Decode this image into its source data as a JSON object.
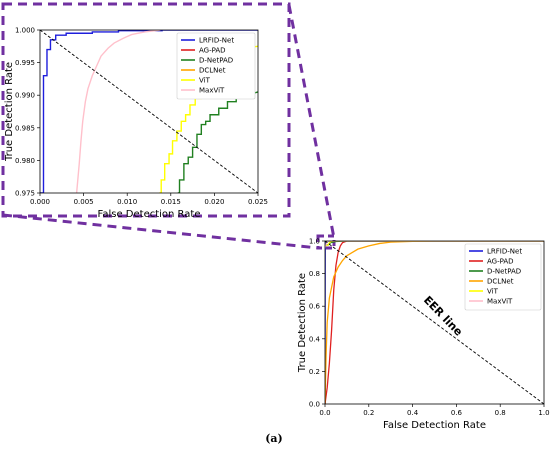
{
  "caption": "(a)",
  "zoom_box_color": "#7030a0",
  "chart_data": [
    {
      "id": "inset",
      "type": "line",
      "xlabel": "False Detection Rate",
      "ylabel": "True Detection Rate",
      "xlim": [
        0,
        0.025
      ],
      "ylim": [
        0.975,
        1.0
      ],
      "xticks": [
        "0.000",
        "0.005",
        "0.010",
        "0.015",
        "0.020",
        "0.025"
      ],
      "xtick_values": [
        0,
        0.005,
        0.01,
        0.015,
        0.02,
        0.025
      ],
      "yticks": [
        "0.975",
        "0.980",
        "0.985",
        "0.990",
        "0.995",
        "1.000"
      ],
      "ytick_values": [
        0.975,
        0.98,
        0.985,
        0.99,
        0.995,
        1.0
      ],
      "grid": false,
      "legend": "top-right",
      "series": [
        {
          "name": "LRFID-Net",
          "color": "#1f1fdc",
          "x": [
            0,
            0.0004,
            0.0004,
            0.0008,
            0.0008,
            0.0012,
            0.0012,
            0.0018,
            0.0018,
            0.003,
            0.003,
            0.006,
            0.006,
            0.009,
            0.009,
            0.014,
            0.014,
            0.025
          ],
          "y": [
            0.975,
            0.975,
            0.993,
            0.993,
            0.997,
            0.997,
            0.9985,
            0.9985,
            0.9992,
            0.9992,
            0.9995,
            0.9995,
            0.9997,
            0.9997,
            0.9999,
            0.9999,
            1.0,
            1.0
          ]
        },
        {
          "name": "AG-PAD",
          "color": "#e02020",
          "x": [],
          "y": []
        },
        {
          "name": "D-NetPAD",
          "color": "#208020",
          "x": [
            0.0158,
            0.016,
            0.016,
            0.0165,
            0.0165,
            0.017,
            0.017,
            0.0175,
            0.0175,
            0.018,
            0.018,
            0.0185,
            0.0185,
            0.019,
            0.019,
            0.0195,
            0.0195,
            0.0205,
            0.0205,
            0.0215,
            0.0215,
            0.0225,
            0.0225,
            0.025
          ],
          "y": [
            0.975,
            0.975,
            0.977,
            0.977,
            0.9795,
            0.9795,
            0.9805,
            0.9805,
            0.982,
            0.982,
            0.984,
            0.984,
            0.9855,
            0.9855,
            0.986,
            0.986,
            0.987,
            0.987,
            0.988,
            0.988,
            0.989,
            0.989,
            0.9895,
            0.9905
          ]
        },
        {
          "name": "DCLNet",
          "color": "#ffa500",
          "x": [],
          "y": []
        },
        {
          "name": "ViT",
          "color": "#ffff00",
          "x": [
            0.0137,
            0.0139,
            0.0139,
            0.0143,
            0.0143,
            0.0148,
            0.0148,
            0.0152,
            0.0152,
            0.0157,
            0.0157,
            0.0162,
            0.0162,
            0.0167,
            0.0167,
            0.0172,
            0.0172,
            0.0178,
            0.0178,
            0.0185,
            0.0185,
            0.0195,
            0.0195,
            0.0205,
            0.0205,
            0.022,
            0.022,
            0.025
          ],
          "y": [
            0.975,
            0.975,
            0.977,
            0.977,
            0.9795,
            0.9795,
            0.981,
            0.981,
            0.983,
            0.983,
            0.9845,
            0.9845,
            0.986,
            0.986,
            0.987,
            0.987,
            0.9885,
            0.9885,
            0.9895,
            0.9895,
            0.991,
            0.991,
            0.9935,
            0.9935,
            0.995,
            0.995,
            0.997,
            0.9975
          ]
        },
        {
          "name": "MaxViT",
          "color": "#ffc0cb",
          "x": [
            0.0042,
            0.0043,
            0.0043,
            0.0045,
            0.0045,
            0.0047,
            0.0047,
            0.0049,
            0.0049,
            0.0052,
            0.0052,
            0.0055,
            0.0055,
            0.006,
            0.006,
            0.0065,
            0.0065,
            0.007,
            0.007,
            0.0078,
            0.0078,
            0.0085,
            0.0085,
            0.0095,
            0.0095,
            0.0105,
            0.0105,
            0.012,
            0.012,
            0.0138
          ],
          "y": [
            0.975,
            0.9765,
            0.9765,
            0.9795,
            0.9795,
            0.983,
            0.983,
            0.986,
            0.986,
            0.989,
            0.989,
            0.991,
            0.991,
            0.993,
            0.993,
            0.9945,
            0.9945,
            0.996,
            0.996,
            0.9972,
            0.9972,
            0.998,
            0.998,
            0.9987,
            0.9987,
            0.9993,
            0.9993,
            0.9997,
            0.9997,
            1.0
          ]
        },
        {
          "name": "",
          "color": "#000000",
          "dashed": true,
          "legend": false,
          "x": [
            0,
            0.025
          ],
          "y": [
            1.0,
            0.975
          ]
        }
      ]
    },
    {
      "id": "main",
      "type": "line",
      "xlabel": "False Detection Rate",
      "ylabel": "True Detection Rate",
      "xlim": [
        0,
        1
      ],
      "ylim": [
        0,
        1
      ],
      "xticks": [
        "0.0",
        "0.2",
        "0.4",
        "0.6",
        "0.8",
        "1.0"
      ],
      "xtick_values": [
        0,
        0.2,
        0.4,
        0.6,
        0.8,
        1.0
      ],
      "yticks": [
        "0.0",
        "0.2",
        "0.4",
        "0.6",
        "0.8",
        "1.0"
      ],
      "ytick_values": [
        0,
        0.2,
        0.4,
        0.6,
        0.8,
        1.0
      ],
      "grid": false,
      "legend": "top-right",
      "annotation": "EER line",
      "series": [
        {
          "name": "LRFID-Net",
          "color": "#1f1fdc",
          "x": [
            0,
            0.001,
            0.002,
            0.02,
            1.0
          ],
          "y": [
            0,
            0.99,
            0.999,
            1.0,
            1.0
          ]
        },
        {
          "name": "AG-PAD",
          "color": "#e02020",
          "x": [
            0,
            0.01,
            0.02,
            0.03,
            0.04,
            0.05,
            0.06,
            0.07,
            0.08,
            0.1,
            0.15,
            1.0
          ],
          "y": [
            0,
            0.1,
            0.25,
            0.45,
            0.7,
            0.85,
            0.93,
            0.97,
            0.99,
            1.0,
            1.0,
            1.0
          ]
        },
        {
          "name": "D-NetPAD",
          "color": "#208020",
          "x": [
            0,
            0.016,
            0.025,
            0.05,
            0.1,
            1.0
          ],
          "y": [
            0.975,
            0.977,
            0.99,
            0.997,
            1.0,
            1.0
          ]
        },
        {
          "name": "DCLNet",
          "color": "#ffa500",
          "x": [
            0,
            0.005,
            0.01,
            0.02,
            0.04,
            0.06,
            0.08,
            0.1,
            0.15,
            0.2,
            0.25,
            0.3,
            0.4,
            0.5,
            1.0
          ],
          "y": [
            0,
            0.3,
            0.5,
            0.65,
            0.78,
            0.84,
            0.88,
            0.91,
            0.95,
            0.97,
            0.985,
            0.993,
            0.998,
            1.0,
            1.0
          ]
        },
        {
          "name": "ViT",
          "color": "#ffff00",
          "x": [
            0,
            0.014,
            0.02,
            0.03,
            0.05,
            1.0
          ],
          "y": [
            0.97,
            0.975,
            0.99,
            0.998,
            1.0,
            1.0
          ]
        },
        {
          "name": "MaxViT",
          "color": "#ffc0cb",
          "x": [
            0,
            0.004,
            0.01,
            0.02,
            1.0
          ],
          "y": [
            0.96,
            0.975,
            0.997,
            1.0,
            1.0
          ]
        },
        {
          "name": "",
          "color": "#000000",
          "dashed": true,
          "legend": false,
          "x": [
            0,
            1
          ],
          "y": [
            1,
            0
          ]
        }
      ]
    }
  ]
}
